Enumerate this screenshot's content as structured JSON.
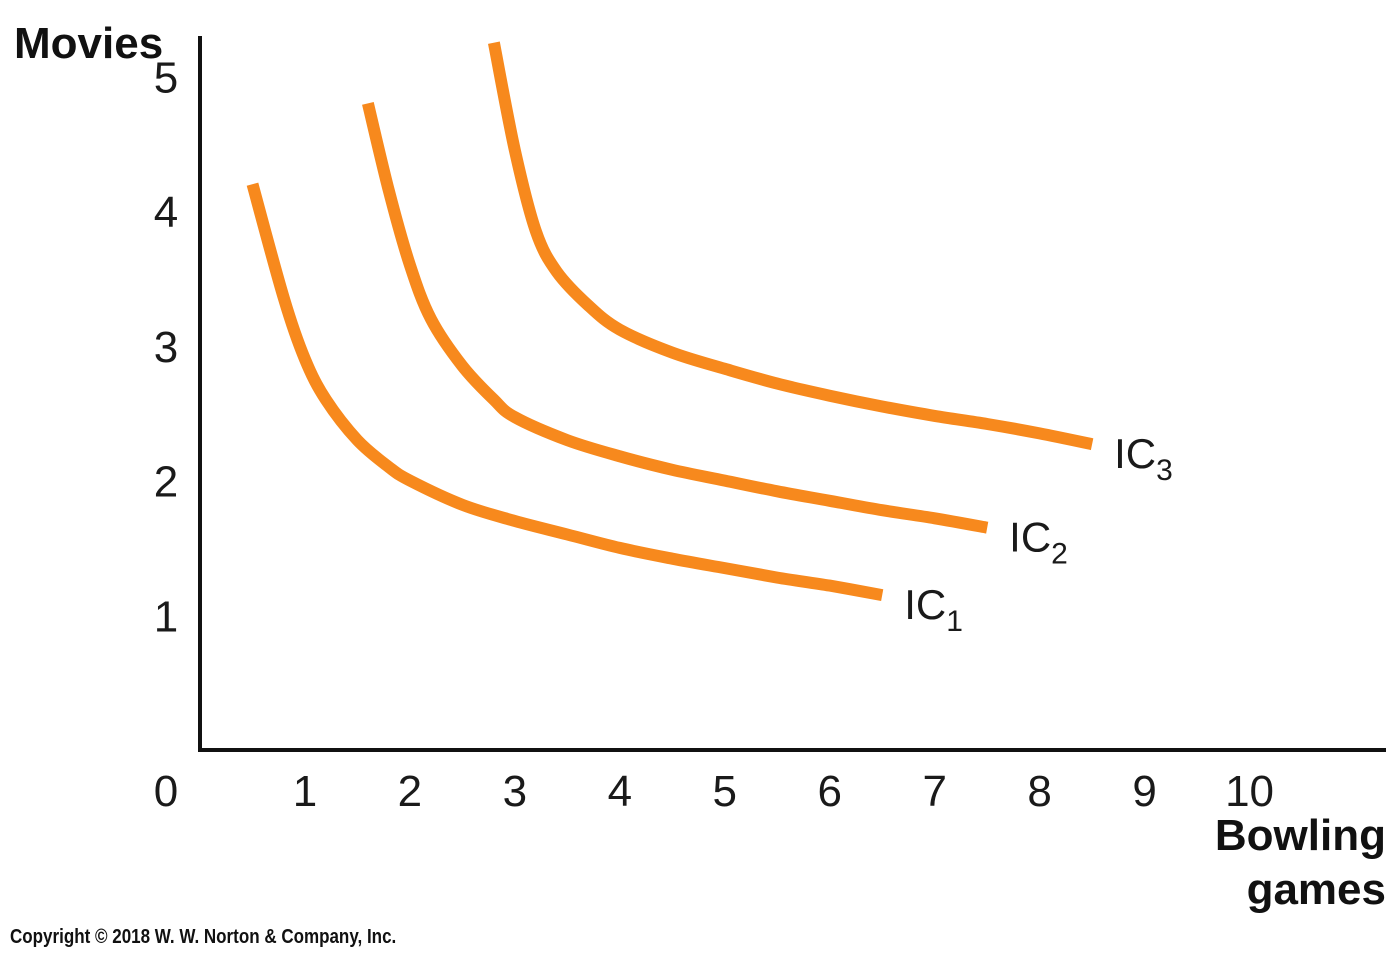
{
  "chart_data": {
    "type": "line",
    "title": "",
    "ylabel": "Movies",
    "xlabel_lines": [
      "Bowling",
      "games"
    ],
    "origin_label": "0",
    "xlim": [
      0,
      11.3
    ],
    "ylim": [
      0,
      5.3
    ],
    "x_ticks": [
      1,
      2,
      3,
      4,
      5,
      6,
      7,
      8,
      9,
      10
    ],
    "y_ticks": [
      1,
      2,
      3,
      4,
      5
    ],
    "grid": false,
    "line_color": "#F7891D",
    "series": [
      {
        "name": "IC1",
        "label_main": "IC",
        "label_sub": "1",
        "x": [
          0.5,
          0.8,
          1.0,
          1.2,
          1.5,
          1.8,
          2.0,
          2.5,
          3.0,
          3.5,
          4.0,
          4.5,
          5.0,
          5.5,
          6.0,
          6.5
        ],
        "y": [
          4.2,
          3.35,
          2.9,
          2.6,
          2.3,
          2.1,
          2.0,
          1.82,
          1.7,
          1.6,
          1.5,
          1.42,
          1.35,
          1.28,
          1.22,
          1.15
        ]
      },
      {
        "name": "IC2",
        "label_main": "IC",
        "label_sub": "2",
        "x": [
          1.6,
          1.8,
          2.0,
          2.2,
          2.5,
          2.8,
          3.0,
          3.5,
          4.0,
          4.5,
          5.0,
          5.5,
          6.0,
          6.5,
          7.0,
          7.5
        ],
        "y": [
          4.8,
          4.15,
          3.6,
          3.2,
          2.85,
          2.6,
          2.47,
          2.3,
          2.18,
          2.08,
          2.0,
          1.92,
          1.85,
          1.78,
          1.72,
          1.65
        ]
      },
      {
        "name": "IC3",
        "label_main": "IC",
        "label_sub": "3",
        "x": [
          2.8,
          3.0,
          3.2,
          3.4,
          3.7,
          4.0,
          4.5,
          5.0,
          5.5,
          6.0,
          6.5,
          7.0,
          7.5,
          8.0,
          8.5
        ],
        "y": [
          5.25,
          4.45,
          3.85,
          3.55,
          3.3,
          3.12,
          2.95,
          2.83,
          2.72,
          2.63,
          2.55,
          2.48,
          2.42,
          2.35,
          2.27
        ]
      }
    ]
  },
  "copyright": "Copyright © 2018 W. W. Norton & Company, Inc."
}
